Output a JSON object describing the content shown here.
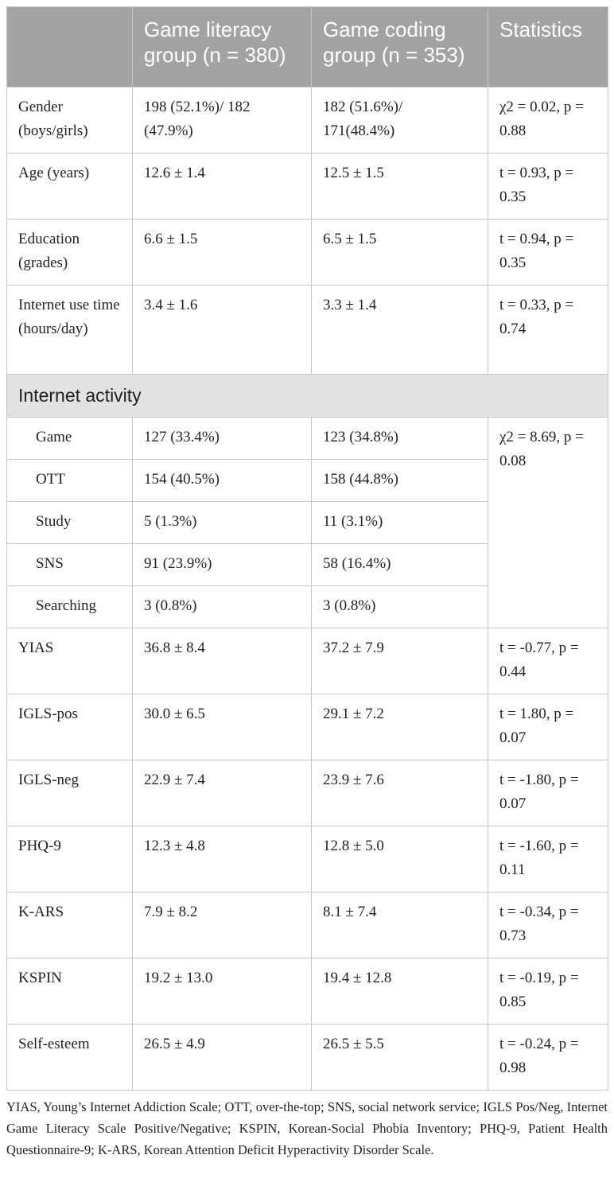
{
  "header": {
    "col1": "",
    "col2": "Game literacy group (n = 380)",
    "col3": "Game coding group (n = 353)",
    "col4": "Statistics"
  },
  "rows_top": [
    {
      "label": "Gender (boys/girls)",
      "g1": "198 (52.1%)/ 182 (47.9%)",
      "g2": "182 (51.6%)/ 171(48.4%)",
      "stat": "χ2 = 0.02, p = 0.88"
    },
    {
      "label": "Age (years)",
      "g1": "12.6 ± 1.4",
      "g2": "12.5 ± 1.5",
      "stat": "t = 0.93, p = 0.35"
    },
    {
      "label": "Education (grades)",
      "g1": "6.6 ± 1.5",
      "g2": "6.5 ± 1.5",
      "stat": "t = 0.94, p = 0.35"
    },
    {
      "label": "Internet use time (hours/day)",
      "g1": "3.4 ± 1.6",
      "g2": "3.3 ± 1.4",
      "stat": "t = 0.33, p = 0.74"
    }
  ],
  "section_title": "Internet activity",
  "activity_rows": [
    {
      "label": "Game",
      "g1": "127 (33.4%)",
      "g2": "123 (34.8%)"
    },
    {
      "label": "OTT",
      "g1": "154 (40.5%)",
      "g2": "158 (44.8%)"
    },
    {
      "label": "Study",
      "g1": "5 (1.3%)",
      "g2": "11 (3.1%)"
    },
    {
      "label": "SNS",
      "g1": "91 (23.9%)",
      "g2": "58 (16.4%)"
    },
    {
      "label": "Searching",
      "g1": "3 (0.8%)",
      "g2": "3 (0.8%)"
    }
  ],
  "activity_stat": "χ2 = 8.69, p = 0.08",
  "rows_bottom": [
    {
      "label": "YIAS",
      "g1": "36.8 ± 8.4",
      "g2": "37.2 ± 7.9",
      "stat": "t = -0.77, p = 0.44"
    },
    {
      "label": "IGLS-pos",
      "g1": "30.0 ± 6.5",
      "g2": "29.1 ± 7.2",
      "stat": "t = 1.80, p = 0.07"
    },
    {
      "label": "IGLS-neg",
      "g1": "22.9 ± 7.4",
      "g2": "23.9 ± 7.6",
      "stat": "t = -1.80, p = 0.07"
    },
    {
      "label": "PHQ-9",
      "g1": "12.3 ± 4.8",
      "g2": "12.8 ± 5.0",
      "stat": "t = -1.60, p = 0.11"
    },
    {
      "label": "K-ARS",
      "g1": "7.9 ± 8.2",
      "g2": "8.1 ± 7.4",
      "stat": "t = -0.34, p = 0.73"
    },
    {
      "label": "KSPIN",
      "g1": "19.2 ± 13.0",
      "g2": "19.4 ± 12.8",
      "stat": "t = -0.19, p = 0.85"
    },
    {
      "label": "Self-esteem",
      "g1": "26.5 ± 4.9",
      "g2": "26.5 ± 5.5",
      "stat": "t = -0.24, p = 0.98"
    }
  ],
  "footnote": "YIAS, Young’s Internet Addiction Scale; OTT, over-the-top; SNS, social network service; IGLS Pos/Neg, Internet Game Literacy Scale Positive/Negative; KSPIN, Korean-Social Phobia Inventory; PHQ-9, Patient Health Questionnaire-9; K-ARS, Korean Attention Deficit Hyperactivity Disorder Scale."
}
